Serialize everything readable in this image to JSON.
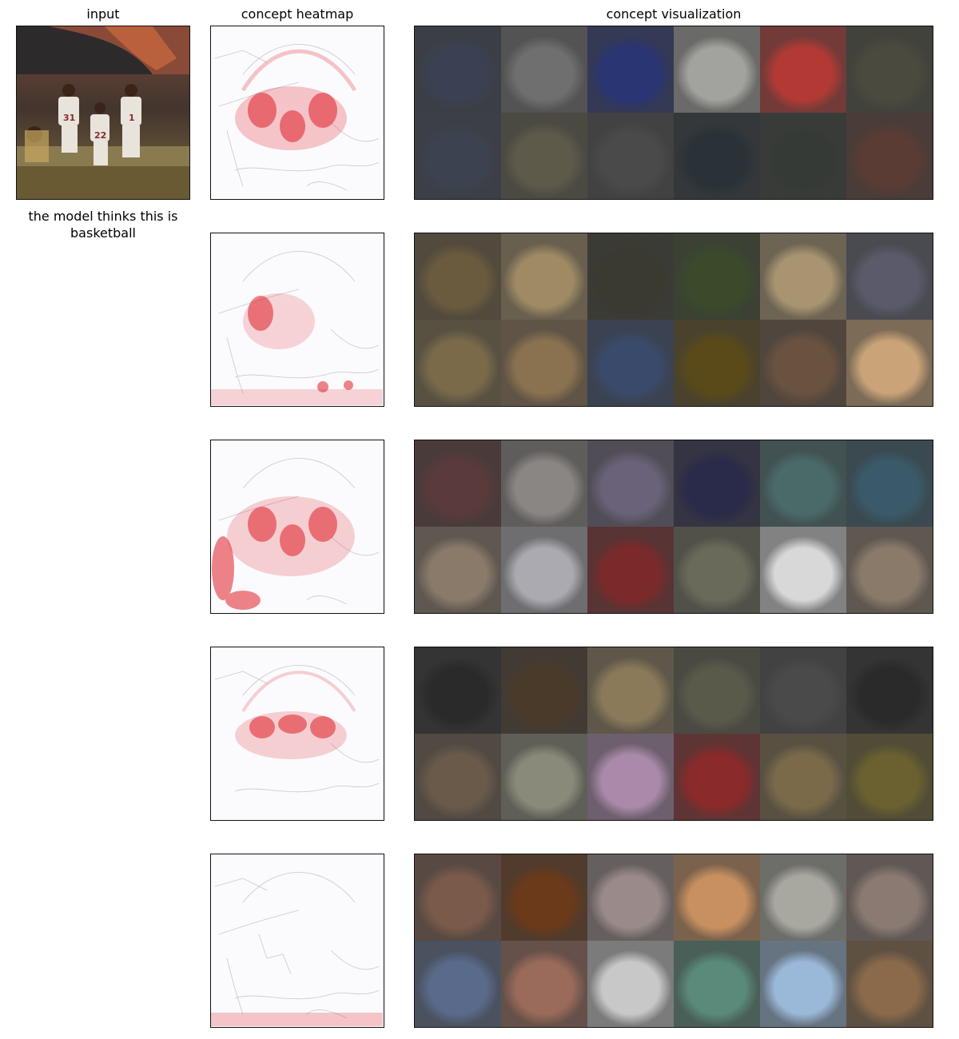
{
  "headers": {
    "input": "input",
    "heatmap": "concept heatmap",
    "visualization": "concept visualization"
  },
  "caption": "the model thinks this is basketball",
  "rows": [
    {
      "tiles": [
        "#3b4152",
        "#6f6f6f",
        "#2a3574",
        "#a2a29e",
        "#b33a34",
        "#4a4a3e",
        "#3c4250",
        "#5e5a4a",
        "#4a4a4a",
        "#2a3238",
        "#363a36",
        "#5a3c34"
      ]
    },
    {
      "tiles": [
        "#6a5a3e",
        "#a08a64",
        "#3a3a30",
        "#3a4a2a",
        "#a89470",
        "#5a5a6a",
        "#7a6a4a",
        "#8a7250",
        "#3a4a6a",
        "#5a4a1a",
        "#6a5240",
        "#caa478"
      ]
    },
    {
      "tiles": [
        "#5a3a3a",
        "#8a8684",
        "#6a6278",
        "#2a2a4a",
        "#4a6a6a",
        "#3a5a6a",
        "#8a7a6a",
        "#aaaab0",
        "#7a2a2a",
        "#6a6a5a",
        "#d8d8d8",
        "#8a7a6a"
      ]
    },
    {
      "tiles": [
        "#2a2a2a",
        "#4a3a2a",
        "#8a7a5a",
        "#5a5a4a",
        "#4a4a4a",
        "#2a2a2a",
        "#6a5a4a",
        "#8a8a7a",
        "#aa8aaa",
        "#8a2a2a",
        "#7a6a4a",
        "#6a6030"
      ]
    },
    {
      "tiles": [
        "#7a5a4a",
        "#6a3a1a",
        "#9a8a8a",
        "#c89060",
        "#a8a8a0",
        "#8a7a72",
        "#5a6a8a",
        "#9a6a5a",
        "#c8c8c8",
        "#5a8a7a",
        "#9ab8d8",
        "#8a6a4a"
      ]
    }
  ]
}
